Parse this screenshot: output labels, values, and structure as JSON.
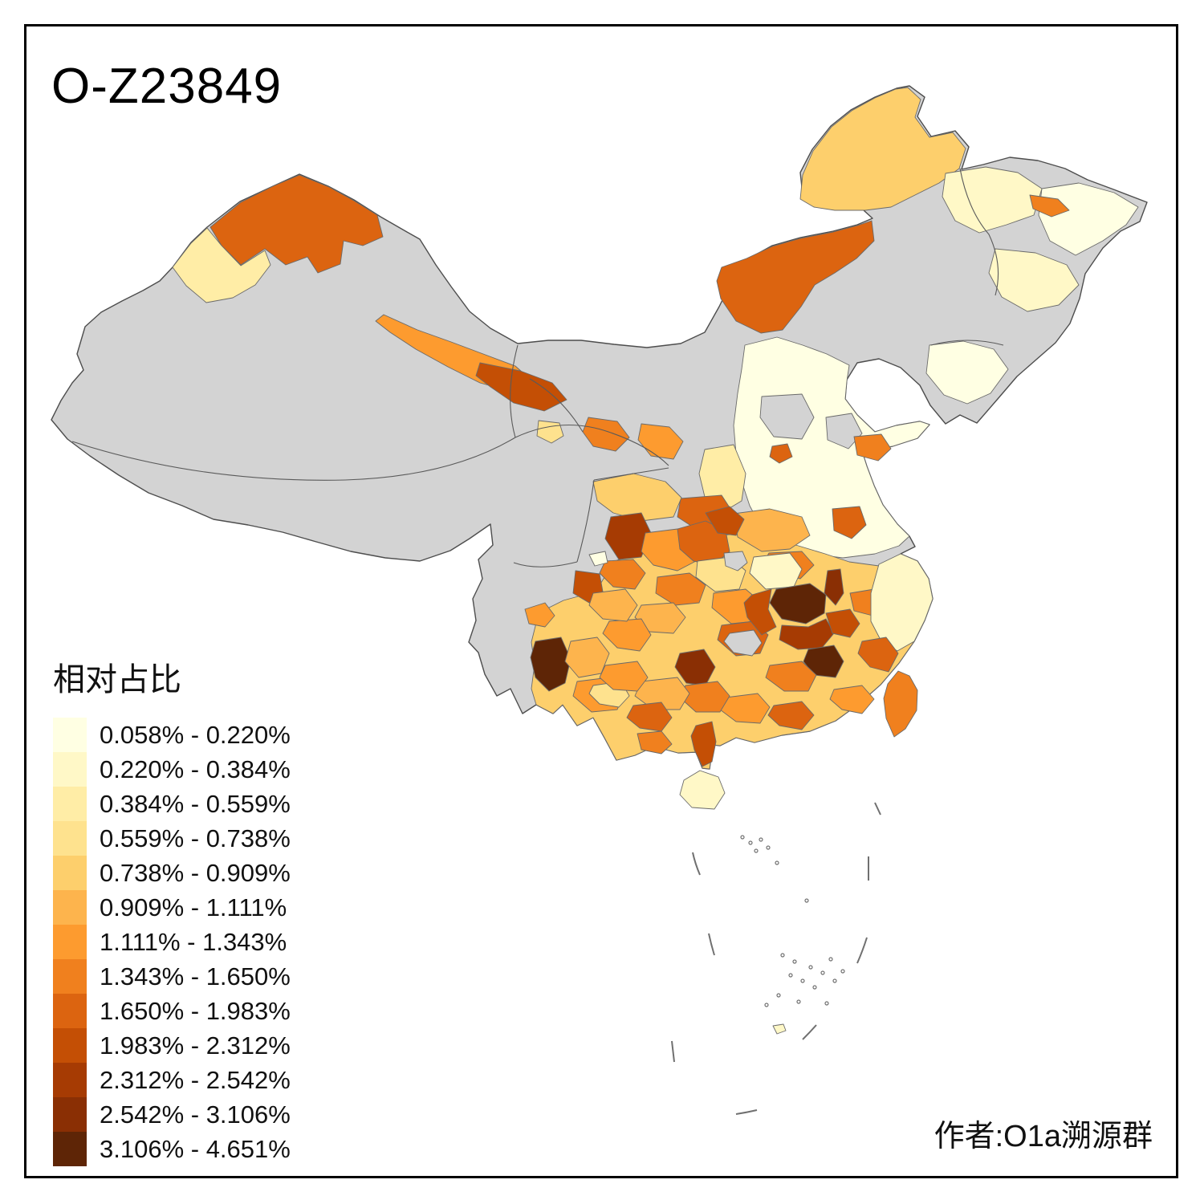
{
  "title": "O-Z23849",
  "legend": {
    "title": "相对占比",
    "classes": [
      {
        "label": "0.058% - 0.220%",
        "color": "#FFFFE3"
      },
      {
        "label": "0.220% - 0.384%",
        "color": "#FFF8C7"
      },
      {
        "label": "0.384% - 0.559%",
        "color": "#FFEDA6"
      },
      {
        "label": "0.559% - 0.738%",
        "color": "#FEE28E"
      },
      {
        "label": "0.738% - 0.909%",
        "color": "#FDCF6C"
      },
      {
        "label": "0.909% - 1.111%",
        "color": "#FDB44D"
      },
      {
        "label": "1.111% - 1.343%",
        "color": "#FD9B2F"
      },
      {
        "label": "1.343% - 1.650%",
        "color": "#F0801E"
      },
      {
        "label": "1.650% - 1.983%",
        "color": "#DC6410"
      },
      {
        "label": "1.983% - 2.312%",
        "color": "#C44F05"
      },
      {
        "label": "2.312% - 2.542%",
        "color": "#A63B03"
      },
      {
        "label": "2.542% - 3.106%",
        "color": "#8A2F04"
      },
      {
        "label": "3.106% - 4.651%",
        "color": "#5E2506"
      }
    ]
  },
  "attribution": "作者:O1a溯源群",
  "map": {
    "na_color": "#D3D3D3",
    "border_color": "#6A6A6A",
    "outline_color": "#4D4D4D",
    "dash_line_color": "#707070",
    "sea_color": "#FFFFFF"
  },
  "chart_data": {
    "type": "choropleth-map",
    "unit": "%",
    "value_name": "相对占比",
    "class_breaks": [
      0.058,
      0.22,
      0.384,
      0.559,
      0.738,
      0.909,
      1.111,
      1.343,
      1.65,
      1.983,
      2.312,
      2.542,
      3.106,
      4.651
    ],
    "no_data_regions": "west China (Tibet, most of Xinjiang, Qinghai) shown gray",
    "high_value_regions": "central Jiangxi, SW Fujian, S Hunan, W Yunnan shown darkest brown"
  }
}
